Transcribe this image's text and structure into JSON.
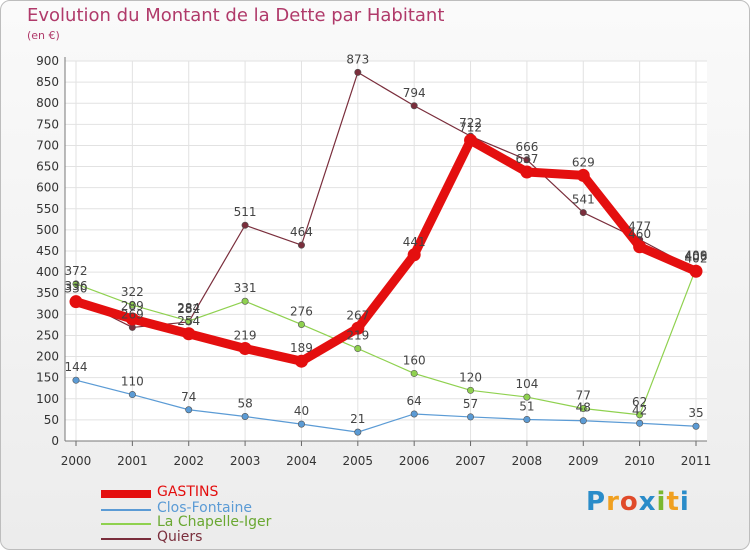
{
  "title": "Evolution du Montant de la Dette par Habitant",
  "subtitle": "(en €)",
  "logo": {
    "text": "Proxiti",
    "colors": [
      "#2a8cc9",
      "#f0a020",
      "#e04a2a",
      "#2a8cc9",
      "#7ab830",
      "#f0a020",
      "#2a8cc9"
    ]
  },
  "chart_data": {
    "type": "line",
    "x": [
      "2000",
      "2001",
      "2002",
      "2003",
      "2004",
      "2005",
      "2006",
      "2007",
      "2008",
      "2009",
      "2010",
      "2011"
    ],
    "ylim": [
      0,
      900
    ],
    "yticks": [
      0,
      50,
      100,
      150,
      200,
      250,
      300,
      350,
      400,
      450,
      500,
      550,
      600,
      650,
      700,
      750,
      800,
      850,
      900
    ],
    "grid": true,
    "legend": "bottom-left",
    "series": [
      {
        "name": "GASTINS",
        "color": "#e40f0f",
        "values": [
          330,
          289,
          254,
          219,
          189,
          267,
          441,
          712,
          637,
          629,
          460,
          402
        ],
        "labels": [
          "330",
          "289",
          "254",
          "219",
          "189",
          "267",
          "441",
          "712",
          "637",
          "629",
          "460",
          "402"
        ]
      },
      {
        "name": "Clos-Fontaine",
        "color": "#5b9bd5",
        "values": [
          144,
          110,
          74,
          58,
          40,
          21,
          64,
          57,
          51,
          48,
          42,
          35
        ],
        "labels": [
          "144",
          "110",
          "74",
          "58",
          "40",
          "21",
          "64",
          "57",
          "51",
          "48",
          "42",
          "35"
        ]
      },
      {
        "name": "La Chapelle-Iger",
        "color": "#8fd14f",
        "values": [
          372,
          322,
          284,
          331,
          276,
          219,
          160,
          120,
          104,
          77,
          62,
          409
        ],
        "labels": [
          "372",
          "322",
          "284",
          "331",
          "276",
          "219",
          "160",
          "120",
          "104",
          "77",
          "62",
          "409"
        ]
      },
      {
        "name": "Quiers",
        "color": "#7a2e3c",
        "values": [
          336,
          269,
          282,
          511,
          464,
          873,
          794,
          722,
          666,
          541,
          477,
          406
        ],
        "labels": [
          "336",
          "269",
          "282",
          "511",
          "464",
          "873",
          "794",
          "722",
          "666",
          "541",
          "477",
          "406"
        ]
      }
    ]
  }
}
